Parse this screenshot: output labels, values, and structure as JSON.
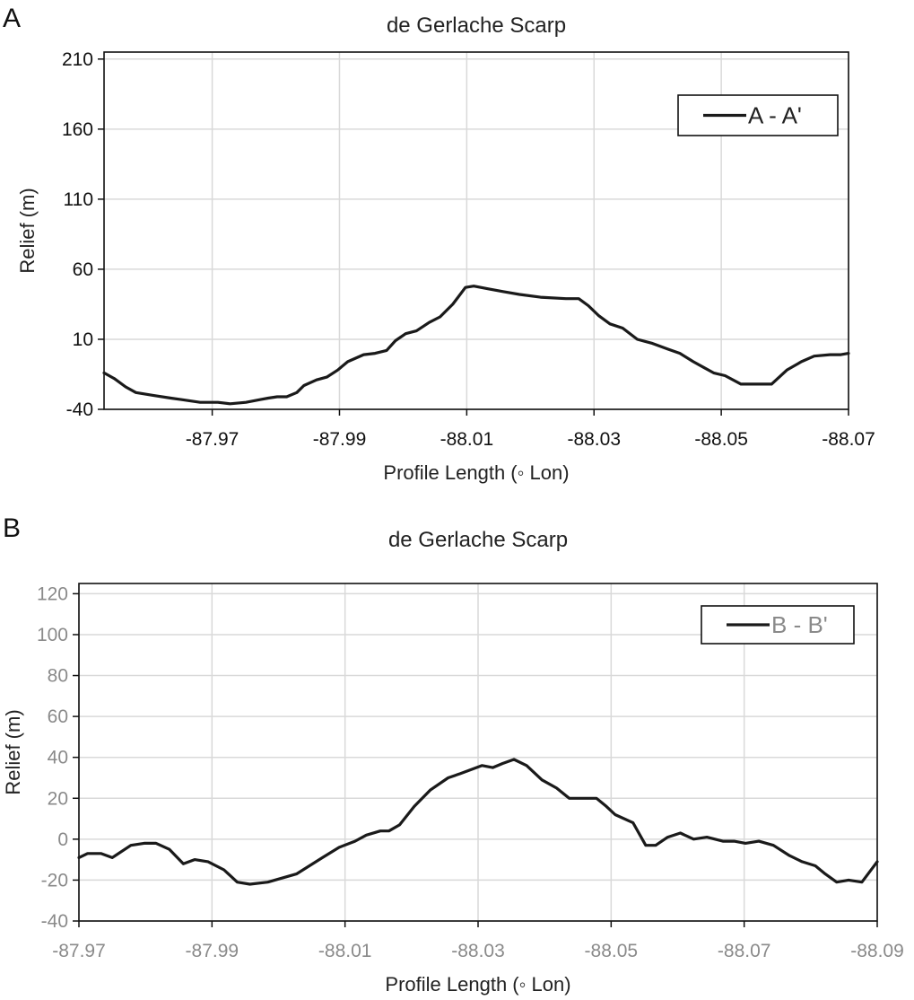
{
  "chart_data": [
    {
      "panel_label": "A",
      "type": "line",
      "title": "de Gerlache Scarp",
      "xlabel": "Profile Length (◦ Lon)",
      "ylabel": "Relief (m)",
      "xlim": [
        -87.953,
        -88.07
      ],
      "ylim": [
        -40,
        215
      ],
      "x_ticks": [
        -87.97,
        -87.99,
        -88.01,
        -88.03,
        -88.05,
        -88.07
      ],
      "x_tick_labels": [
        "-87.97",
        "-87.99",
        "-88.01",
        "-88.03",
        "-88.05",
        "-88.07"
      ],
      "y_ticks": [
        -40,
        10,
        60,
        110,
        160,
        210
      ],
      "y_tick_labels": [
        "-40",
        "10",
        "60",
        "110",
        "160",
        "210"
      ],
      "grid": true,
      "legend_position": "top-right",
      "tick_label_color": "#111111",
      "series": [
        {
          "name": "A - A'",
          "color": "#1a1a1a",
          "x": [
            -87.953,
            -87.9546,
            -87.9564,
            -87.958,
            -87.9607,
            -87.9635,
            -87.9651,
            -87.9681,
            -87.9709,
            -87.9728,
            -87.9753,
            -87.9776,
            -87.9788,
            -87.9802,
            -87.9817,
            -87.9833,
            -87.9844,
            -87.9864,
            -87.988,
            -87.9897,
            -87.9913,
            -87.9938,
            -87.9956,
            -87.9974,
            -87.9988,
            -88.0004,
            -88.0021,
            -88.0041,
            -88.0058,
            -88.0078,
            -88.0098,
            -88.0111,
            -88.0134,
            -88.0158,
            -88.0183,
            -88.0216,
            -88.0256,
            -88.0276,
            -88.0291,
            -88.0307,
            -88.0325,
            -88.0345,
            -88.0368,
            -88.0392,
            -88.0416,
            -88.0435,
            -88.0456,
            -88.0472,
            -88.0488,
            -88.0506,
            -88.0531,
            -88.0562,
            -88.0579,
            -88.0603,
            -88.0626,
            -88.0646,
            -88.0671,
            -88.0688,
            -88.07
          ],
          "y": [
            -14,
            -18,
            -24,
            -28,
            -30,
            -32,
            -33,
            -35,
            -35,
            -36,
            -35,
            -33,
            -32,
            -31,
            -31,
            -28,
            -23,
            -19,
            -17,
            -12,
            -6,
            -1,
            0,
            2,
            9,
            14,
            16,
            22,
            26,
            35,
            47,
            48,
            46,
            44,
            42,
            40,
            39,
            39,
            34,
            27,
            21,
            18,
            10,
            7,
            3,
            0,
            -6,
            -10,
            -14,
            -16,
            -22,
            -22,
            -22,
            -12,
            -6,
            -2,
            -1,
            -1,
            0
          ]
        }
      ]
    },
    {
      "panel_label": "B",
      "type": "line",
      "title": "de Gerlache Scarp",
      "xlabel": "Profile Length (◦ Lon)",
      "ylabel": "Relief (m)",
      "xlim": [
        -87.97,
        -88.09
      ],
      "ylim": [
        -40,
        125
      ],
      "x_ticks": [
        -87.97,
        -87.99,
        -88.01,
        -88.03,
        -88.05,
        -88.07,
        -88.09
      ],
      "x_tick_labels": [
        "-87.97",
        "-87.99",
        "-88.01",
        "-88.03",
        "-88.05",
        "-88.07",
        "-88.09"
      ],
      "y_ticks": [
        -40,
        -20,
        0,
        20,
        40,
        60,
        80,
        100,
        120
      ],
      "y_tick_labels": [
        "-40",
        "-20",
        "0",
        "20",
        "40",
        "60",
        "80",
        "100",
        "120"
      ],
      "grid": true,
      "legend_position": "top-right",
      "tick_label_color": "#8a8a8a",
      "series": [
        {
          "name": "B - B'",
          "color": "#1a1a1a",
          "x": [
            -87.97,
            -87.9713,
            -87.9733,
            -87.975,
            -87.9778,
            -87.9798,
            -87.9816,
            -87.9836,
            -87.9857,
            -87.9874,
            -87.9894,
            -87.9918,
            -87.9938,
            -87.9957,
            -87.9984,
            -88.0027,
            -88.0066,
            -88.0091,
            -88.0115,
            -88.0132,
            -88.0153,
            -88.0166,
            -88.0182,
            -88.0204,
            -88.0228,
            -88.0255,
            -88.0273,
            -88.0306,
            -88.0322,
            -88.0337,
            -88.0354,
            -88.0373,
            -88.0396,
            -88.0418,
            -88.0437,
            -88.0458,
            -88.0478,
            -88.0493,
            -88.0506,
            -88.0533,
            -88.0552,
            -88.0567,
            -88.0585,
            -88.0604,
            -88.0624,
            -88.0644,
            -88.0668,
            -88.0685,
            -88.0702,
            -88.0722,
            -88.0744,
            -88.0768,
            -88.0787,
            -88.0807,
            -88.0822,
            -88.0839,
            -88.0857,
            -88.0877,
            -88.09
          ],
          "y": [
            -9,
            -7,
            -7,
            -9,
            -3,
            -2,
            -2,
            -5,
            -12,
            -10,
            -11,
            -15,
            -21,
            -22,
            -21,
            -17,
            -9,
            -4,
            -1,
            2,
            4,
            4,
            7,
            16,
            24,
            30,
            32,
            36,
            35,
            37,
            39,
            36,
            29,
            25,
            20,
            20,
            20,
            16,
            12,
            8,
            -3,
            -3,
            1,
            3,
            0,
            1,
            -1,
            -1,
            -2,
            -1,
            -3,
            -8,
            -11,
            -13,
            -17,
            -21,
            -20,
            -21,
            -11
          ]
        }
      ]
    }
  ]
}
